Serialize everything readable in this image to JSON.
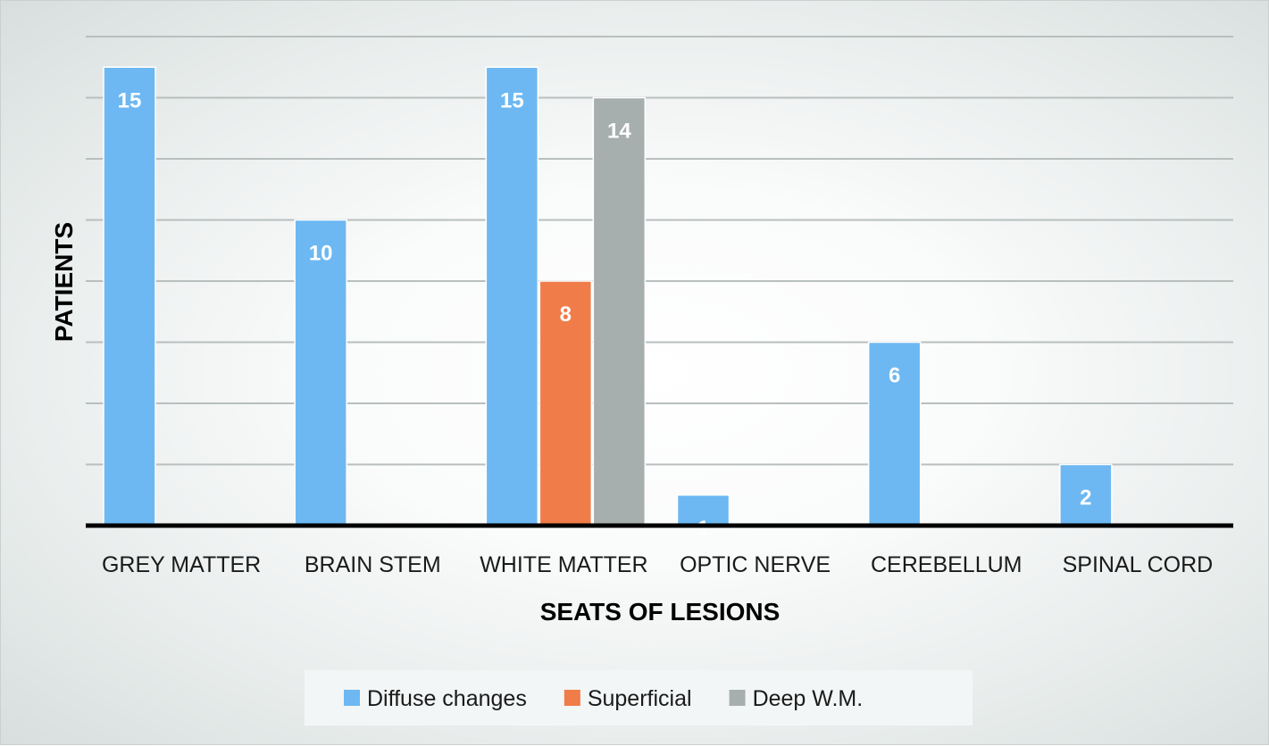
{
  "chart_data": {
    "type": "bar",
    "title": "",
    "xlabel": "SEATS OF LESIONS",
    "ylabel": "PATIENTS",
    "categories": [
      "GREY MATTER",
      "BRAIN STEM",
      "WHITE MATTER",
      "OPTIC NERVE",
      "CEREBELLUM",
      "SPINAL CORD"
    ],
    "series": [
      {
        "name": "Diffuse changes",
        "color": "#6db8f2",
        "values": [
          15,
          10,
          15,
          1,
          6,
          2
        ]
      },
      {
        "name": "Superficial",
        "color": "#f07c4a",
        "values": [
          null,
          null,
          8,
          null,
          null,
          null
        ]
      },
      {
        "name": "Deep W.M.",
        "color": "#a7afae",
        "values": [
          null,
          null,
          14,
          null,
          null,
          null
        ]
      }
    ],
    "ylim": [
      0,
      16
    ],
    "grid": true,
    "legend": "bottom",
    "data_labels": true
  }
}
